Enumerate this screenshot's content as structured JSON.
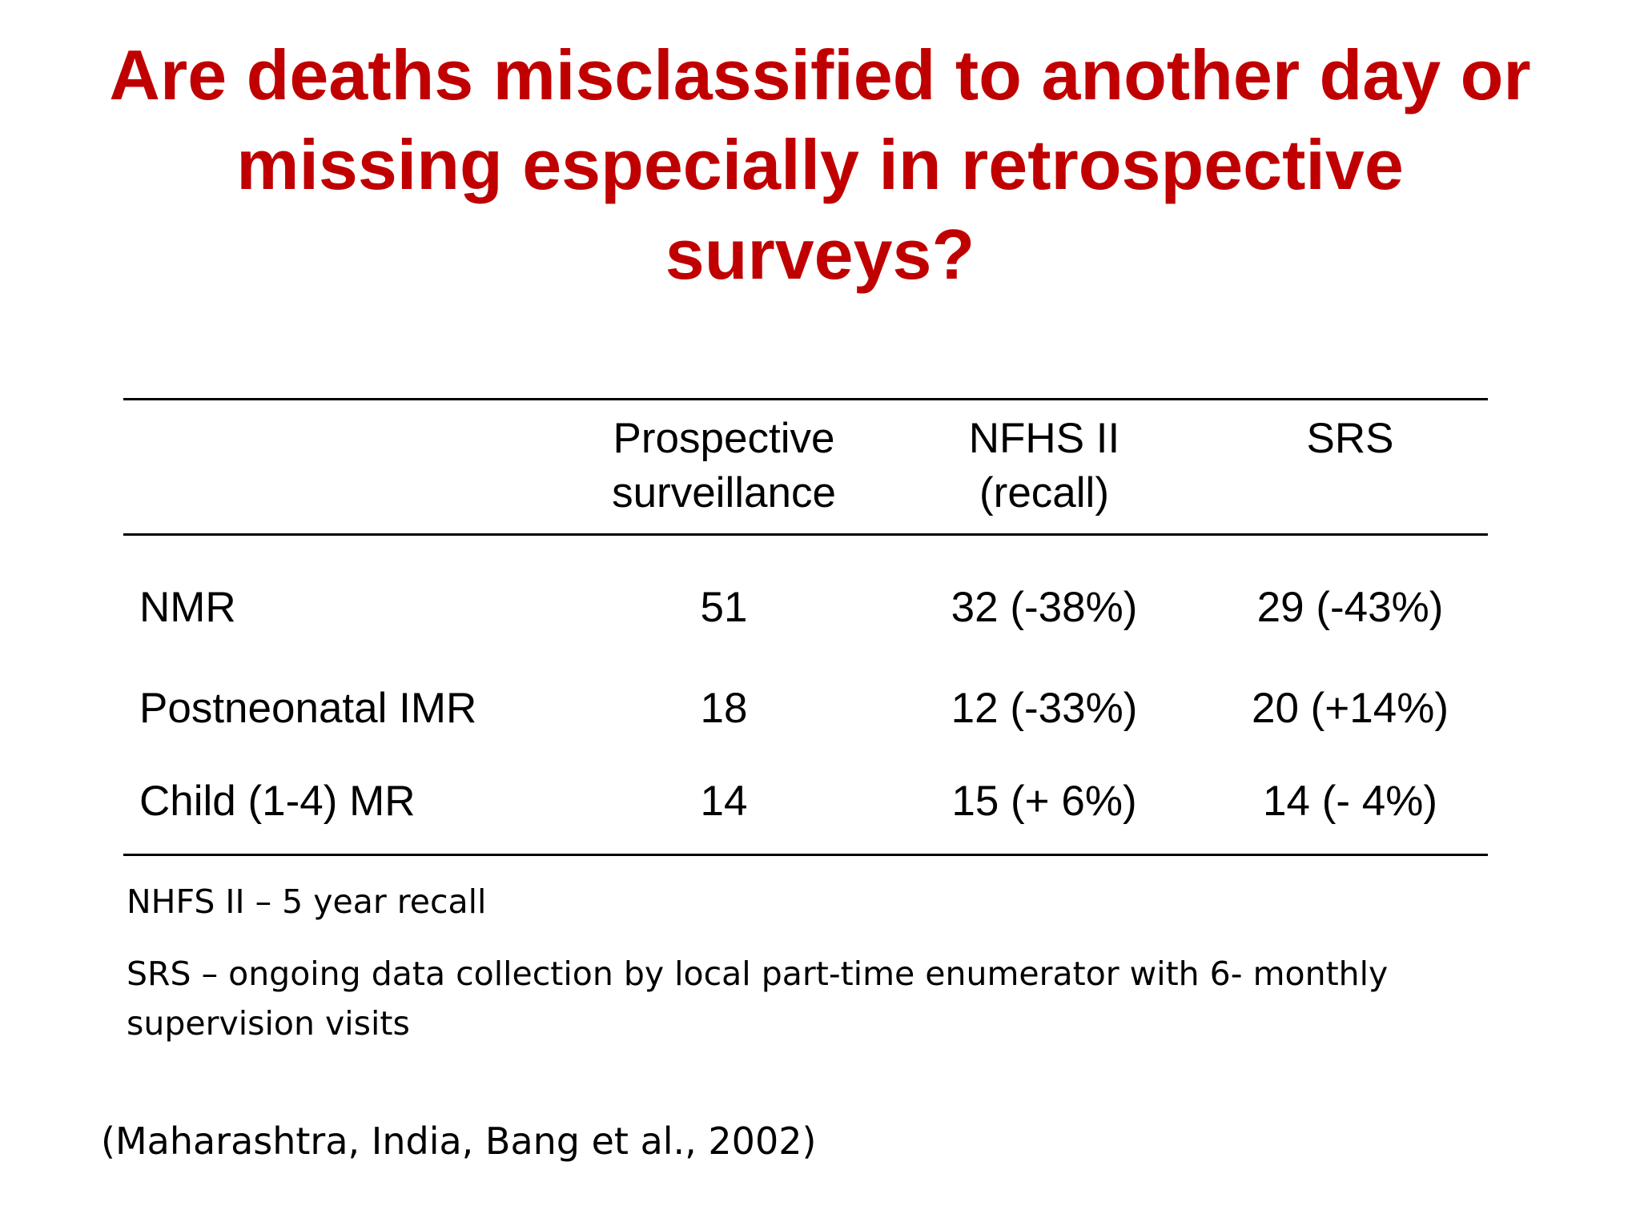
{
  "slide": {
    "title_lines": [
      "Are deaths misclassified to another day or",
      "missing especially in retrospective",
      "surveys?"
    ],
    "colors": {
      "title": "#c00000",
      "text": "#000000",
      "background": "#ffffff"
    }
  },
  "table": {
    "headers": [
      {
        "lines": [
          "",
          ""
        ]
      },
      {
        "lines": [
          "Prospective",
          "surveillance"
        ]
      },
      {
        "lines": [
          "NFHS II",
          "(recall)"
        ]
      },
      {
        "lines": [
          "SRS",
          ""
        ]
      }
    ],
    "rows": [
      {
        "label": "NMR",
        "values": [
          "51",
          "32 (-38%)",
          "29 (-43%)"
        ]
      },
      {
        "label": "Postneonatal IMR",
        "values": [
          "18",
          "12 (-33%)",
          "20 (+14%)"
        ]
      },
      {
        "label": "Child (1-4) MR",
        "values": [
          "14",
          "15 (+ 6%)",
          "14 (-  4%)"
        ]
      }
    ]
  },
  "notes": [
    "NHFS II – 5 year recall",
    "SRS – ongoing data collection by local part-time enumerator with 6- monthly supervision visits"
  ],
  "source": "(Maharashtra, India, Bang et al., 2002)"
}
